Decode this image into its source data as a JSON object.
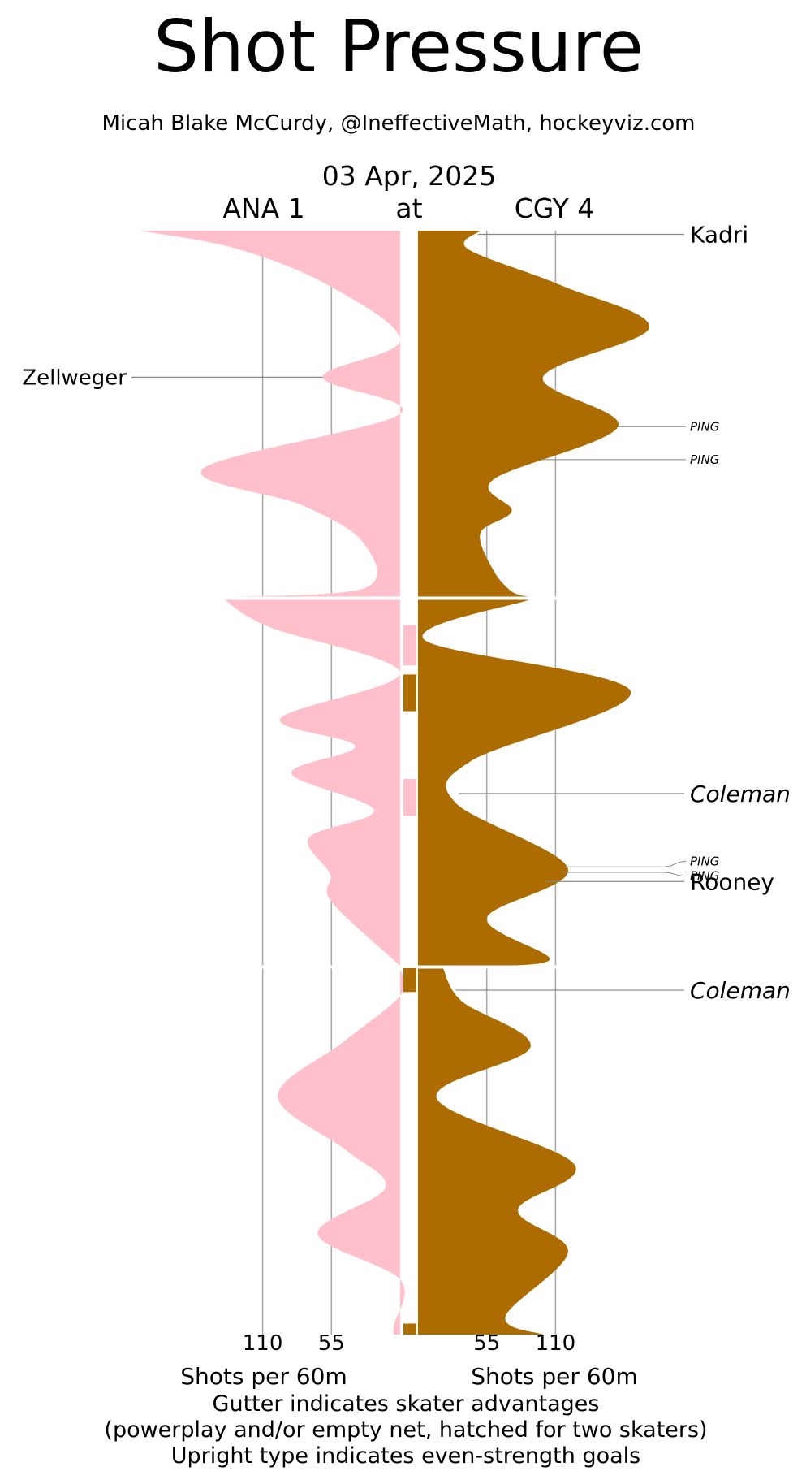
{
  "chart_data": {
    "type": "area",
    "title": "Shot Pressure",
    "subtitle": "Micah Blake McCurdy, @IneffectiveMath, hockeyviz.com",
    "date": "03 Apr, 2025",
    "away_label": "ANA 1",
    "at_label": "at",
    "home_label": "CGY 4",
    "x_axis": {
      "ticks": [
        55,
        110
      ],
      "tick_labels": [
        "55",
        "110"
      ],
      "label": "Shots per 60m",
      "away_range": [
        0,
        210
      ],
      "home_range": [
        0,
        190
      ]
    },
    "periods": 3,
    "period_minutes": 20,
    "colors": {
      "away": "#ffc0cb",
      "home": "#ad6c00",
      "grid": "#aaaaaa",
      "leader": "#888888"
    },
    "series": [
      {
        "name": "ANA 1",
        "side": "left",
        "points": [
          [
            0,
            208
          ],
          [
            1,
            130
          ],
          [
            3,
            57
          ],
          [
            6,
            0
          ],
          [
            8,
            62
          ],
          [
            10,
            0
          ],
          [
            13,
            158
          ],
          [
            15,
            78
          ],
          [
            17,
            30
          ],
          [
            19.5,
            28
          ],
          [
            20,
            141
          ],
          [
            21.5,
            105
          ],
          [
            24,
            0
          ],
          [
            26.5,
            96
          ],
          [
            28,
            36
          ],
          [
            29.5,
            87
          ],
          [
            31.5,
            21
          ],
          [
            33,
            73
          ],
          [
            35,
            56
          ],
          [
            36.5,
            55
          ],
          [
            40,
            0
          ],
          [
            41.5,
            0
          ],
          [
            44,
            45
          ],
          [
            47,
            98
          ],
          [
            50,
            42
          ],
          [
            52,
            12
          ],
          [
            54.5,
            66
          ],
          [
            57,
            0
          ],
          [
            59.5,
            5
          ],
          [
            60,
            5
          ]
        ]
      },
      {
        "name": "CGY 4",
        "side": "right",
        "points": [
          [
            0,
            50
          ],
          [
            1,
            40
          ],
          [
            3,
            115
          ],
          [
            5.3,
            185
          ],
          [
            8,
            100
          ],
          [
            10.7,
            160
          ],
          [
            13.6,
            60
          ],
          [
            15.3,
            75
          ],
          [
            16.5,
            50
          ],
          [
            18.5,
            60
          ],
          [
            19.7,
            75
          ],
          [
            20,
            90
          ],
          [
            22.2,
            5
          ],
          [
            25,
            170
          ],
          [
            28.8,
            43
          ],
          [
            31.1,
            30
          ],
          [
            34.7,
            120
          ],
          [
            37.4,
            55
          ],
          [
            39.7,
            105
          ],
          [
            40,
            20
          ],
          [
            41.8,
            35
          ],
          [
            44.3,
            90
          ],
          [
            47.1,
            15
          ],
          [
            50.7,
            125
          ],
          [
            53.2,
            80
          ],
          [
            55.5,
            120
          ],
          [
            59,
            70
          ],
          [
            60,
            100
          ]
        ]
      }
    ],
    "gutter": [
      {
        "start": 21.4,
        "end": 23.6,
        "team": "ANA 1"
      },
      {
        "start": 24.1,
        "end": 26.1,
        "team": "CGY 4"
      },
      {
        "start": 29.8,
        "end": 31.8,
        "team": "ANA 1"
      },
      {
        "start": 40.0,
        "end": 41.3,
        "team": "CGY 4"
      },
      {
        "start": 59.4,
        "end": 60.0,
        "team": "CGY 4"
      }
    ],
    "goals": [
      {
        "t": 0.2,
        "team": "CGY 4",
        "scorer": "Kadri",
        "even_strength": true
      },
      {
        "t": 8.0,
        "team": "ANA 1",
        "scorer": "Zellweger",
        "even_strength": true
      },
      {
        "t": 30.6,
        "team": "CGY 4",
        "scorer": "Coleman",
        "even_strength": false
      },
      {
        "t": 35.4,
        "team": "CGY 4",
        "scorer": "Rooney",
        "even_strength": true
      },
      {
        "t": 41.2,
        "team": "CGY 4",
        "scorer": "Coleman",
        "even_strength": false
      }
    ],
    "posts": [
      {
        "t": 10.7,
        "team": "CGY 4",
        "label": "PING",
        "label_t": 10.7
      },
      {
        "t": 12.5,
        "team": "CGY 4",
        "label": "PING",
        "label_t": 12.5
      },
      {
        "t": 34.6,
        "team": "CGY 4",
        "label": "PING",
        "label_t": 34.3
      },
      {
        "t": 34.9,
        "team": "CGY 4",
        "label": "PING",
        "label_t": 35.1
      }
    ],
    "notes": [
      "Gutter indicates skater advantages",
      "(powerplay and/or empty net, hatched for two skaters)",
      "Upright type indicates even-strength goals"
    ]
  }
}
